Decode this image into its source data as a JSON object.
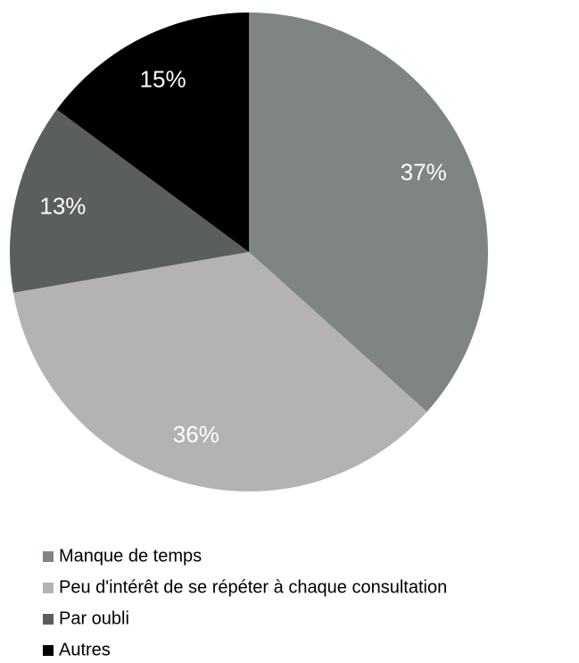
{
  "chart_data": {
    "type": "pie",
    "categories": [
      "Manque de temps",
      "Peu d'intérêt de se répéter à chaque consultation",
      "Par oubli",
      "Autres"
    ],
    "values": [
      37,
      36,
      13,
      15
    ],
    "value_labels": [
      "37%",
      "36%",
      "13%",
      "15%"
    ],
    "colors": [
      "#7f8582",
      "#b3b3b3",
      "#5a5e5c",
      "#000000"
    ],
    "legend": "bottom"
  }
}
